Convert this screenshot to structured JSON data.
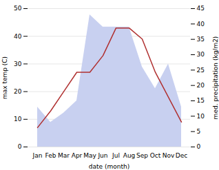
{
  "chart_data": {
    "type": "line",
    "xlabel": "date (month)",
    "ylabel": "max temp (C)",
    "y2label": "med. precipitation (kg/m2)",
    "categories": [
      "Jan",
      "Feb",
      "Mar",
      "Apr",
      "May",
      "Jun",
      "Jul",
      "Aug",
      "Sep",
      "Oct",
      "Nov",
      "Dec"
    ],
    "series": [
      {
        "type": "area",
        "axis": "y2",
        "color": "#c8d0f0",
        "values": [
          13,
          8,
          11,
          15,
          43,
          39,
          39,
          39,
          26,
          19,
          27,
          13
        ]
      },
      {
        "type": "line",
        "axis": "y",
        "color": "#b03030",
        "values": [
          7,
          13,
          20,
          27,
          27,
          33,
          43,
          43,
          39,
          27,
          18,
          9
        ]
      }
    ],
    "ylim": [
      0,
      50
    ],
    "yticks": [
      0,
      10,
      20,
      30,
      40,
      50
    ],
    "y2lim": [
      0,
      45
    ],
    "y2ticks": [
      0,
      5,
      10,
      15,
      20,
      25,
      30,
      35,
      40,
      45
    ],
    "grid": true
  }
}
